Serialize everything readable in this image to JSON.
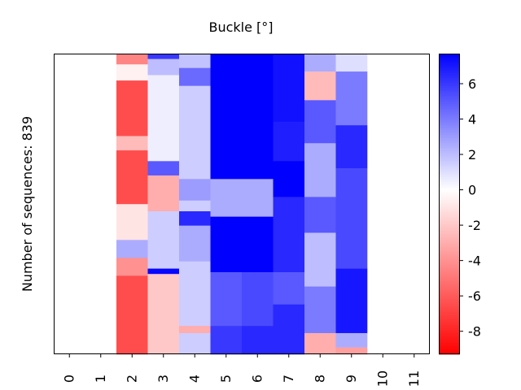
{
  "chart_data": {
    "type": "heatmap",
    "title": "Buckle [°]",
    "ylabel": "Number of sequences: 839",
    "xlabel": "",
    "x_tick_labels": [
      "0",
      "1",
      "2",
      "3",
      "4",
      "5",
      "6",
      "7",
      "8",
      "9",
      "10",
      "11"
    ],
    "n_rows": 839,
    "colorbar": {
      "colormap": "bwr",
      "vmin": -9.3,
      "vmax": 7.7,
      "ticks": [
        -8,
        -6,
        -4,
        -2,
        0,
        2,
        4,
        6
      ],
      "tick_labels": [
        "-8",
        "-6",
        "-4",
        "-2",
        "0",
        "2",
        "4",
        "6"
      ]
    },
    "columns": [
      {
        "index": 0,
        "segments": []
      },
      {
        "index": 1,
        "segments": []
      },
      {
        "index": 2,
        "segments": [
          {
            "rows": [
              0,
              30
            ],
            "value": -4.5
          },
          {
            "rows": [
              30,
              75
            ],
            "value": -0.5
          },
          {
            "rows": [
              75,
              230
            ],
            "value": -6.5
          },
          {
            "rows": [
              230,
              270
            ],
            "value": -2.5
          },
          {
            "rows": [
              270,
              420
            ],
            "value": -6.5
          },
          {
            "rows": [
              420,
              520
            ],
            "value": -1.0
          },
          {
            "rows": [
              520,
              570
            ],
            "value": 2.5
          },
          {
            "rows": [
              570,
              620
            ],
            "value": -4.0
          },
          {
            "rows": [
              620,
              839
            ],
            "value": -6.5
          }
        ]
      },
      {
        "index": 3,
        "segments": [
          {
            "rows": [
              0,
              15
            ],
            "value": 6.0
          },
          {
            "rows": [
              15,
              60
            ],
            "value": 2.0
          },
          {
            "rows": [
              60,
              300
            ],
            "value": 0.5
          },
          {
            "rows": [
              300,
              340
            ],
            "value": 5.0
          },
          {
            "rows": [
              340,
              440
            ],
            "value": -3.0
          },
          {
            "rows": [
              440,
              600
            ],
            "value": 1.5
          },
          {
            "rows": [
              600,
              615
            ],
            "value": 7.5
          },
          {
            "rows": [
              615,
              839
            ],
            "value": -2.0
          }
        ]
      },
      {
        "index": 4,
        "segments": [
          {
            "rows": [
              0,
              40
            ],
            "value": 1.8
          },
          {
            "rows": [
              40,
              90
            ],
            "value": 4.5
          },
          {
            "rows": [
              90,
              350
            ],
            "value": 1.5
          },
          {
            "rows": [
              350,
              410
            ],
            "value": 3.0
          },
          {
            "rows": [
              410,
              440
            ],
            "value": 1.5
          },
          {
            "rows": [
              440,
              480
            ],
            "value": 6.5
          },
          {
            "rows": [
              480,
              580
            ],
            "value": 2.5
          },
          {
            "rows": [
              580,
              760
            ],
            "value": 1.5
          },
          {
            "rows": [
              760,
              780
            ],
            "value": -3.0
          },
          {
            "rows": [
              780,
              839
            ],
            "value": 1.5
          }
        ]
      },
      {
        "index": 5,
        "segments": [
          {
            "rows": [
              0,
              350
            ],
            "value": 7.7
          },
          {
            "rows": [
              350,
              455
            ],
            "value": 2.5
          },
          {
            "rows": [
              455,
              610
            ],
            "value": 7.7
          },
          {
            "rows": [
              610,
              760
            ],
            "value": 5.0
          },
          {
            "rows": [
              760,
              839
            ],
            "value": 6.0
          }
        ]
      },
      {
        "index": 6,
        "segments": [
          {
            "rows": [
              0,
              350
            ],
            "value": 7.7
          },
          {
            "rows": [
              350,
              455
            ],
            "value": 2.5
          },
          {
            "rows": [
              455,
              610
            ],
            "value": 7.7
          },
          {
            "rows": [
              610,
              760
            ],
            "value": 5.5
          },
          {
            "rows": [
              760,
              839
            ],
            "value": 6.5
          }
        ]
      },
      {
        "index": 7,
        "segments": [
          {
            "rows": [
              0,
              190
            ],
            "value": 7.2
          },
          {
            "rows": [
              190,
              300
            ],
            "value": 6.8
          },
          {
            "rows": [
              300,
              400
            ],
            "value": 7.7
          },
          {
            "rows": [
              400,
              610
            ],
            "value": 6.5
          },
          {
            "rows": [
              610,
              700
            ],
            "value": 5.0
          },
          {
            "rows": [
              700,
              839
            ],
            "value": 6.5
          }
        ]
      },
      {
        "index": 8,
        "segments": [
          {
            "rows": [
              0,
              50
            ],
            "value": 2.5
          },
          {
            "rows": [
              50,
              130
            ],
            "value": -2.5
          },
          {
            "rows": [
              130,
              250
            ],
            "value": 5.0
          },
          {
            "rows": [
              250,
              400
            ],
            "value": 2.5
          },
          {
            "rows": [
              400,
              500
            ],
            "value": 5.0
          },
          {
            "rows": [
              500,
              650
            ],
            "value": 2.0
          },
          {
            "rows": [
              650,
              780
            ],
            "value": 4.0
          },
          {
            "rows": [
              780,
              839
            ],
            "value": -3.0
          }
        ]
      },
      {
        "index": 9,
        "segments": [
          {
            "rows": [
              0,
              50
            ],
            "value": 1.0
          },
          {
            "rows": [
              50,
              200
            ],
            "value": 4.0
          },
          {
            "rows": [
              200,
              320
            ],
            "value": 6.5
          },
          {
            "rows": [
              320,
              600
            ],
            "value": 5.5
          },
          {
            "rows": [
              600,
              780
            ],
            "value": 7.0
          },
          {
            "rows": [
              780,
              820
            ],
            "value": 2.5
          },
          {
            "rows": [
              820,
              839
            ],
            "value": -3.5
          }
        ]
      },
      {
        "index": 10,
        "segments": []
      },
      {
        "index": 11,
        "segments": []
      }
    ]
  }
}
